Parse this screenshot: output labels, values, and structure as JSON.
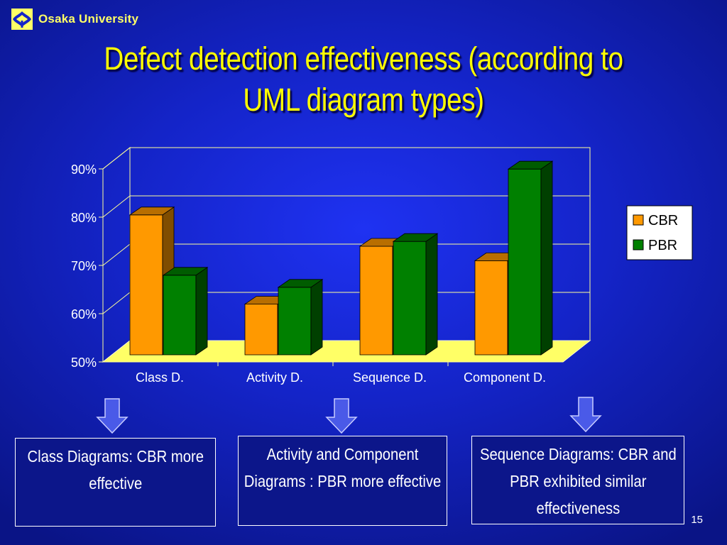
{
  "header": {
    "logo_text": "Osaka University",
    "logo_icon": "osaka-university-emblem-icon"
  },
  "slide": {
    "title": "Defect detection effectiveness (according to UML diagram types)",
    "page_number": "15"
  },
  "chart_data": {
    "type": "bar",
    "title": "",
    "xlabel": "",
    "ylabel": "",
    "categories": [
      "Class D.",
      "Activity D.",
      "Sequence D.",
      "Component D."
    ],
    "series": [
      {
        "name": "CBR",
        "values": [
          79,
          60.5,
          72.5,
          69.5
        ],
        "color": "#ff9900"
      },
      {
        "name": "PBR",
        "values": [
          66.5,
          64,
          73.5,
          88.5
        ],
        "color": "#008000"
      }
    ],
    "ylim": [
      50,
      90
    ],
    "yticks": [
      "50%",
      "60%",
      "70%",
      "80%",
      "90%"
    ],
    "ytick_values": [
      50,
      60,
      70,
      80,
      90
    ],
    "grid": true,
    "legend_position": "right",
    "style": "3d-clustered-column",
    "floor_color": "#ffff66",
    "gridline_color": "#ffff99"
  },
  "notes": [
    {
      "text": "Class Diagrams: CBR more effective"
    },
    {
      "text": "Activity and Component Diagrams : PBR more effective"
    },
    {
      "text": "Sequence Diagrams: CBR and PBR exhibited similar effectiveness"
    }
  ],
  "arrows": {
    "icon": "down-arrow-icon",
    "fill": "#4a5ae8"
  }
}
